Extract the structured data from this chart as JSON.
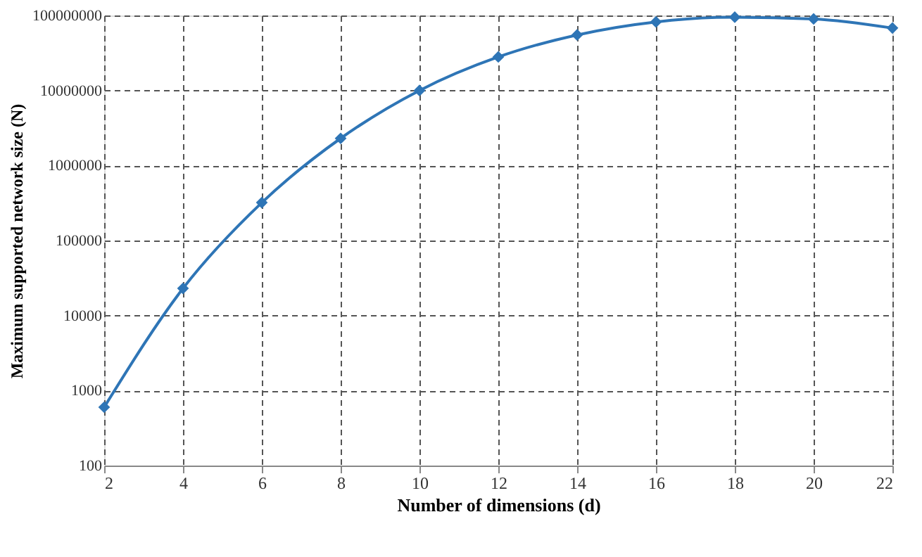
{
  "chart_data": {
    "type": "line",
    "xlabel": "Number of dimensions (d)",
    "ylabel": "Maximum supported network size (N)",
    "x": [
      2,
      4,
      6,
      8,
      10,
      12,
      14,
      16,
      18,
      20,
      22
    ],
    "series": [
      {
        "color": "#2e75b6",
        "values": [
          600,
          23000,
          320000,
          2300000,
          10000000,
          28000000,
          55000000,
          82000000,
          95000000,
          90000000,
          68000000
        ]
      }
    ],
    "xlim": [
      2,
      22
    ],
    "xticks": [
      2,
      4,
      6,
      8,
      10,
      12,
      14,
      16,
      18,
      20,
      22
    ],
    "ylim": [
      100,
      100000000
    ],
    "yticks": [
      100,
      1000,
      10000,
      100000,
      1000000,
      10000000,
      100000000
    ],
    "log": "y",
    "grid": true,
    "marker": "diamond",
    "line_style": "solid"
  }
}
